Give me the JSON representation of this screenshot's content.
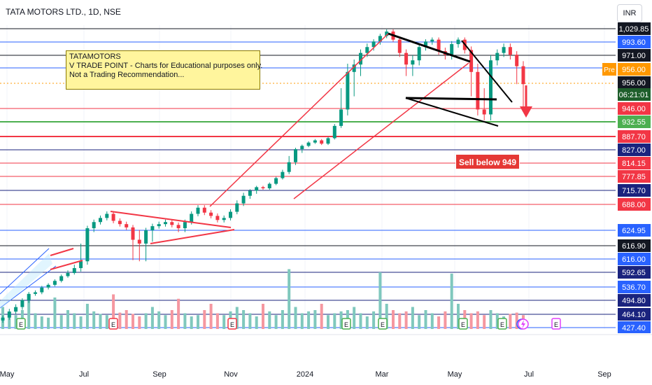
{
  "header": {
    "symbol_title": "TATA MOTORS LTD., 1D, NSE",
    "currency_label": "INR"
  },
  "annotations": {
    "note_lines": [
      "TATAMOTORS",
      "V TRADE POINT - Charts for Educational purposes only.",
      "Not a Trading Recommendation..."
    ],
    "sell_label": "Sell below 949"
  },
  "colors": {
    "red_line": "#f23645",
    "blue_line": "#2962ff",
    "green_line": "#4caf50",
    "navy_line": "#1a237e",
    "candle_up": "#089981",
    "candle_down": "#f23645",
    "note_bg": "#fff59d",
    "price_tag": "#000000",
    "pre_tag": "#ff9800"
  },
  "chart_data": {
    "type": "candlestick",
    "x_axis_labels": [
      "May",
      "Jul",
      "Sep",
      "Nov",
      "2024",
      "Mar",
      "May",
      "Jul",
      "Sep"
    ],
    "price_axis_labels": [
      "1,029.85",
      "993.60",
      "971.00",
      "956.00",
      "956.00",
      "06:21:01",
      "946.00",
      "932.55",
      "887.70",
      "827.00",
      "814.15",
      "777.85",
      "715.70",
      "688.00",
      "624.95",
      "616.90",
      "616.00",
      "592.65",
      "536.70",
      "494.80",
      "464.10",
      "427.40"
    ],
    "pre_label": "Pre",
    "pre_price": "956.00",
    "current_price": "956.00",
    "countdown": "06:21:01",
    "horizontal_levels": [
      1029.85,
      993.6,
      971.0,
      956.0,
      946.0,
      932.55,
      887.7,
      827.0,
      814.15,
      777.85,
      715.7,
      688.0,
      624.95,
      616.9,
      616.0,
      592.65,
      536.7,
      494.8,
      464.1,
      427.4
    ],
    "sell_level": 949,
    "event_markers": [
      "E",
      "E",
      "E",
      "E",
      "E",
      "E",
      "E",
      "D",
      "E"
    ],
    "close_series": [
      455,
      470,
      480,
      495,
      515,
      520,
      535,
      545,
      560,
      578,
      590,
      600,
      612,
      630,
      645,
      655,
      665,
      648,
      640,
      632,
      620,
      618,
      625,
      635,
      640,
      645,
      638,
      630,
      645,
      665,
      680,
      668,
      660,
      650,
      655,
      670,
      690,
      705,
      715,
      730,
      725,
      745,
      770,
      790,
      815,
      830,
      845,
      860,
      870,
      855,
      880,
      920,
      945,
      955,
      960,
      975,
      985,
      995,
      1010,
      1022,
      1000,
      975,
      960,
      965,
      985,
      995,
      1000,
      978,
      972,
      990,
      1000,
      980,
      955,
      945,
      940,
      965,
      975,
      985,
      972,
      958,
      952
    ],
    "volume_series": [
      35,
      28,
      22,
      30,
      45,
      25,
      20,
      18,
      50,
      22,
      30,
      25,
      20,
      40,
      28,
      24,
      22,
      55,
      26,
      30,
      24,
      20,
      25,
      35,
      28,
      22,
      30,
      48,
      25,
      20,
      22,
      30,
      40,
      25,
      22,
      28,
      35,
      30,
      25,
      20,
      40,
      28,
      22,
      30,
      95,
      35,
      25,
      28,
      30,
      40,
      22,
      25,
      28,
      30,
      35,
      25,
      20,
      28,
      90,
      40,
      30,
      25,
      28,
      35,
      22,
      30,
      25,
      20,
      28,
      88,
      40,
      30,
      25,
      28,
      22,
      30,
      25,
      20,
      24,
      26,
      22
    ]
  }
}
